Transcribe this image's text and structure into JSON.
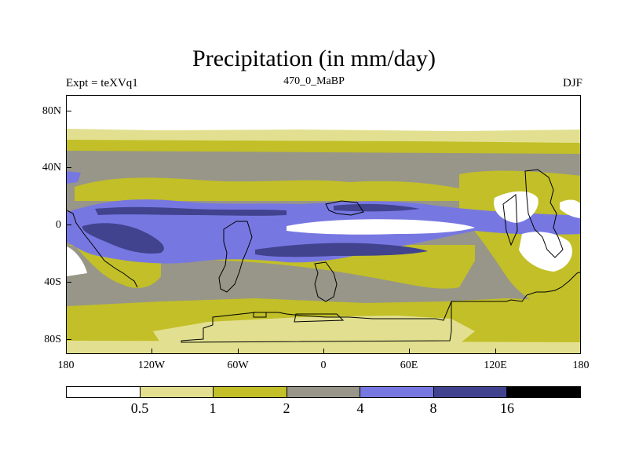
{
  "map": {
    "title": "Precipitation (in mm/day)",
    "left_label": "Expt = teXVq1",
    "center_label": "470_0_MaBP",
    "right_label": "DJF",
    "lat_ticks": [
      "80N",
      "40N",
      "0",
      "40S",
      "80S"
    ],
    "lon_ticks": [
      "180",
      "120W",
      "60W",
      "0",
      "60E",
      "120E",
      "180"
    ],
    "colors": {
      "c0": "#ffffff",
      "c1": "#e2e090",
      "c2": "#c2bf28",
      "c3": "#989688",
      "c4": "#7777e2",
      "c5": "#41438f",
      "c6": "#000000"
    }
  },
  "colorbar": {
    "labels": [
      "0.5",
      "1",
      "2",
      "4",
      "8",
      "16"
    ]
  }
}
